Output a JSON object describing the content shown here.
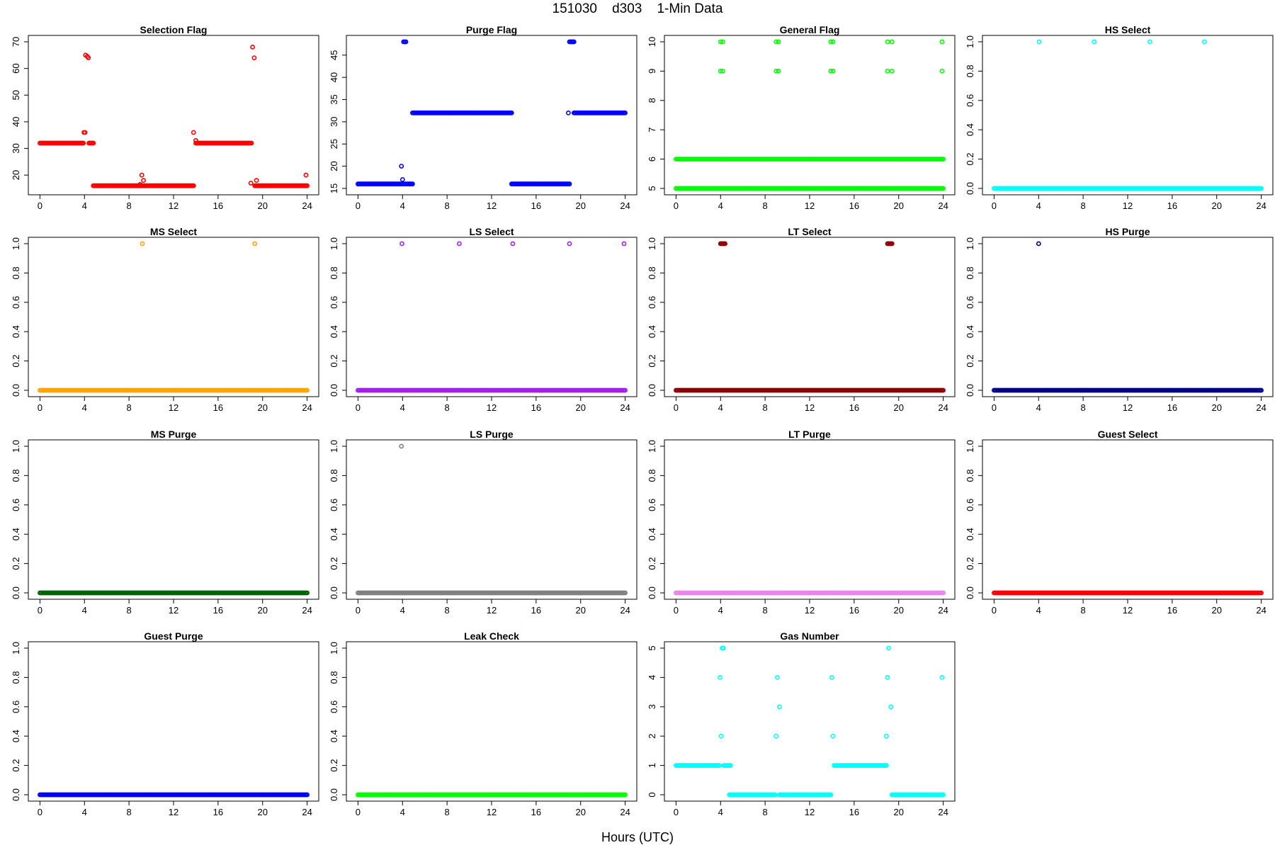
{
  "figure": {
    "title": "151030    d303    1-Min Data",
    "xlabel": "Hours (UTC)"
  },
  "chart_data": [
    {
      "type": "scatter",
      "title": "Selection Flag",
      "color": "#ff0000",
      "xlim": [
        0,
        24
      ],
      "ylim": [
        15,
        70
      ],
      "xticks": [
        0,
        4,
        8,
        12,
        16,
        20,
        24
      ],
      "yticks": [
        20,
        30,
        40,
        50,
        60,
        70
      ],
      "segments": [
        [
          0,
          3.9,
          32
        ],
        [
          4.4,
          4.8,
          32
        ],
        [
          4.8,
          13.8,
          16
        ],
        [
          14.0,
          19.0,
          32
        ],
        [
          19.3,
          24,
          16
        ]
      ],
      "points": [
        [
          3.95,
          36
        ],
        [
          4.05,
          36
        ],
        [
          4.1,
          65
        ],
        [
          4.25,
          64.5
        ],
        [
          4.35,
          64
        ],
        [
          13.8,
          36
        ],
        [
          14.0,
          33
        ],
        [
          9.0,
          16.5
        ],
        [
          9.15,
          20
        ],
        [
          9.3,
          18
        ],
        [
          18.95,
          17
        ],
        [
          19.1,
          68
        ],
        [
          19.25,
          64
        ],
        [
          19.45,
          18
        ],
        [
          23.9,
          20
        ]
      ]
    },
    {
      "type": "scatter",
      "title": "Purge Flag",
      "color": "#0000ff",
      "xlim": [
        0,
        24
      ],
      "ylim": [
        15,
        48
      ],
      "xticks": [
        0,
        4,
        8,
        12,
        16,
        20,
        24
      ],
      "yticks": [
        15,
        20,
        25,
        30,
        35,
        40,
        45
      ],
      "segments": [
        [
          0,
          3.9,
          16
        ],
        [
          4.1,
          4.3,
          48
        ],
        [
          4.3,
          4.9,
          16
        ],
        [
          4.9,
          13.8,
          32
        ],
        [
          13.8,
          19.0,
          16
        ],
        [
          19.0,
          19.4,
          48
        ],
        [
          19.4,
          24,
          32
        ]
      ],
      "points": [
        [
          3.9,
          20
        ],
        [
          4.0,
          17
        ],
        [
          4.1,
          16
        ],
        [
          18.9,
          32
        ]
      ]
    },
    {
      "type": "scatter",
      "title": "General Flag",
      "color": "#00ff00",
      "xlim": [
        0,
        24
      ],
      "ylim": [
        5,
        10
      ],
      "xticks": [
        0,
        4,
        8,
        12,
        16,
        20,
        24
      ],
      "yticks": [
        5,
        6,
        7,
        8,
        9,
        10
      ],
      "segments": [
        [
          0,
          24,
          5
        ],
        [
          0,
          24,
          6
        ]
      ],
      "points": [
        [
          4.0,
          9
        ],
        [
          4.2,
          9
        ],
        [
          4.0,
          10
        ],
        [
          4.2,
          10
        ],
        [
          9.0,
          9
        ],
        [
          9.2,
          9
        ],
        [
          9.0,
          10
        ],
        [
          9.2,
          10
        ],
        [
          13.9,
          9
        ],
        [
          14.1,
          9
        ],
        [
          13.9,
          10
        ],
        [
          14.1,
          10
        ],
        [
          19.0,
          9
        ],
        [
          19.4,
          9
        ],
        [
          19.0,
          10
        ],
        [
          19.4,
          10
        ],
        [
          23.9,
          9
        ],
        [
          23.9,
          10
        ]
      ]
    },
    {
      "type": "scatter",
      "title": "HS Select",
      "color": "#00ffff",
      "xlim": [
        0,
        24
      ],
      "ylim": [
        0,
        1
      ],
      "xticks": [
        0,
        4,
        8,
        12,
        16,
        20,
        24
      ],
      "yticks": [
        0.0,
        0.2,
        0.4,
        0.6,
        0.8,
        1.0
      ],
      "segments": [
        [
          0,
          24,
          0
        ]
      ],
      "points": [
        [
          4.05,
          1
        ],
        [
          9.0,
          1
        ],
        [
          14.0,
          1
        ],
        [
          18.9,
          1
        ]
      ]
    },
    {
      "type": "scatter",
      "title": "MS Select",
      "color": "#ffa500",
      "xlim": [
        0,
        24
      ],
      "ylim": [
        0,
        1
      ],
      "xticks": [
        0,
        4,
        8,
        12,
        16,
        20,
        24
      ],
      "yticks": [
        0.0,
        0.2,
        0.4,
        0.6,
        0.8,
        1.0
      ],
      "segments": [
        [
          0,
          24,
          0
        ]
      ],
      "points": [
        [
          9.2,
          1
        ],
        [
          19.3,
          1
        ]
      ]
    },
    {
      "type": "scatter",
      "title": "LS Select",
      "color": "#a020f0",
      "xlim": [
        0,
        24
      ],
      "ylim": [
        0,
        1
      ],
      "xticks": [
        0,
        4,
        8,
        12,
        16,
        20,
        24
      ],
      "yticks": [
        0.0,
        0.2,
        0.4,
        0.6,
        0.8,
        1.0
      ],
      "segments": [
        [
          0,
          24,
          0
        ]
      ],
      "points": [
        [
          3.95,
          1
        ],
        [
          9.1,
          1
        ],
        [
          13.9,
          1
        ],
        [
          19.0,
          1
        ],
        [
          23.9,
          1
        ]
      ]
    },
    {
      "type": "scatter",
      "title": "LT Select",
      "color": "#8b0000",
      "xlim": [
        0,
        24
      ],
      "ylim": [
        0,
        1
      ],
      "xticks": [
        0,
        4,
        8,
        12,
        16,
        20,
        24
      ],
      "yticks": [
        0.0,
        0.2,
        0.4,
        0.6,
        0.8,
        1.0
      ],
      "segments": [
        [
          0,
          24,
          0
        ],
        [
          4.0,
          4.4,
          1
        ],
        [
          19.0,
          19.4,
          1
        ]
      ],
      "points": []
    },
    {
      "type": "scatter",
      "title": "HS Purge",
      "color": "#00008b",
      "xlim": [
        0,
        24
      ],
      "ylim": [
        0,
        1
      ],
      "xticks": [
        0,
        4,
        8,
        12,
        16,
        20,
        24
      ],
      "yticks": [
        0.0,
        0.2,
        0.4,
        0.6,
        0.8,
        1.0
      ],
      "segments": [
        [
          0,
          24,
          0
        ]
      ],
      "points": [
        [
          4.0,
          1
        ]
      ]
    },
    {
      "type": "scatter",
      "title": "MS Purge",
      "color": "#006400",
      "xlim": [
        0,
        24
      ],
      "ylim": [
        0,
        1
      ],
      "xticks": [
        0,
        4,
        8,
        12,
        16,
        20,
        24
      ],
      "yticks": [
        0.0,
        0.2,
        0.4,
        0.6,
        0.8,
        1.0
      ],
      "segments": [
        [
          0,
          24,
          0
        ]
      ],
      "points": []
    },
    {
      "type": "scatter",
      "title": "LS Purge",
      "color": "#808080",
      "xlim": [
        0,
        24
      ],
      "ylim": [
        0,
        1
      ],
      "xticks": [
        0,
        4,
        8,
        12,
        16,
        20,
        24
      ],
      "yticks": [
        0.0,
        0.2,
        0.4,
        0.6,
        0.8,
        1.0
      ],
      "segments": [
        [
          0,
          24,
          0
        ]
      ],
      "points": [
        [
          3.9,
          1
        ]
      ]
    },
    {
      "type": "scatter",
      "title": "LT Purge",
      "color": "#ee82ee",
      "xlim": [
        0,
        24
      ],
      "ylim": [
        0,
        1
      ],
      "xticks": [
        0,
        4,
        8,
        12,
        16,
        20,
        24
      ],
      "yticks": [
        0.0,
        0.2,
        0.4,
        0.6,
        0.8,
        1.0
      ],
      "segments": [
        [
          0,
          24,
          0
        ]
      ],
      "points": []
    },
    {
      "type": "scatter",
      "title": "Guest Select",
      "color": "#ff0000",
      "xlim": [
        0,
        24
      ],
      "ylim": [
        0,
        1
      ],
      "xticks": [
        0,
        4,
        8,
        12,
        16,
        20,
        24
      ],
      "yticks": [
        0.0,
        0.2,
        0.4,
        0.6,
        0.8,
        1.0
      ],
      "segments": [
        [
          0,
          24,
          0
        ]
      ],
      "points": []
    },
    {
      "type": "scatter",
      "title": "Guest Purge",
      "color": "#0000ff",
      "xlim": [
        0,
        24
      ],
      "ylim": [
        0,
        1
      ],
      "xticks": [
        0,
        4,
        8,
        12,
        16,
        20,
        24
      ],
      "yticks": [
        0.0,
        0.2,
        0.4,
        0.6,
        0.8,
        1.0
      ],
      "segments": [
        [
          0,
          24,
          0
        ]
      ],
      "points": []
    },
    {
      "type": "scatter",
      "title": "Leak Check",
      "color": "#00ff00",
      "xlim": [
        0,
        24
      ],
      "ylim": [
        0,
        1
      ],
      "xticks": [
        0,
        4,
        8,
        12,
        16,
        20,
        24
      ],
      "yticks": [
        0.0,
        0.2,
        0.4,
        0.6,
        0.8,
        1.0
      ],
      "segments": [
        [
          0,
          24,
          0
        ]
      ],
      "points": []
    },
    {
      "type": "scatter",
      "title": "Gas Number",
      "color": "#00ffff",
      "xlim": [
        0,
        24
      ],
      "ylim": [
        0,
        5
      ],
      "xticks": [
        0,
        4,
        8,
        12,
        16,
        20,
        24
      ],
      "yticks": [
        0,
        1,
        2,
        3,
        4,
        5
      ],
      "segments": [
        [
          0,
          3.9,
          1
        ],
        [
          4.3,
          4.9,
          1
        ],
        [
          4.8,
          8.9,
          0
        ],
        [
          9.3,
          13.9,
          0
        ],
        [
          14.2,
          18.9,
          1
        ],
        [
          19.4,
          24,
          0
        ]
      ],
      "points": [
        [
          3.95,
          4
        ],
        [
          4.05,
          2
        ],
        [
          4.15,
          5
        ],
        [
          4.25,
          5
        ],
        [
          9.0,
          2
        ],
        [
          9.1,
          4
        ],
        [
          9.3,
          3
        ],
        [
          14.0,
          4
        ],
        [
          14.1,
          2
        ],
        [
          18.9,
          2
        ],
        [
          19.0,
          4
        ],
        [
          19.1,
          5
        ],
        [
          19.3,
          3
        ],
        [
          23.9,
          4
        ]
      ]
    }
  ]
}
